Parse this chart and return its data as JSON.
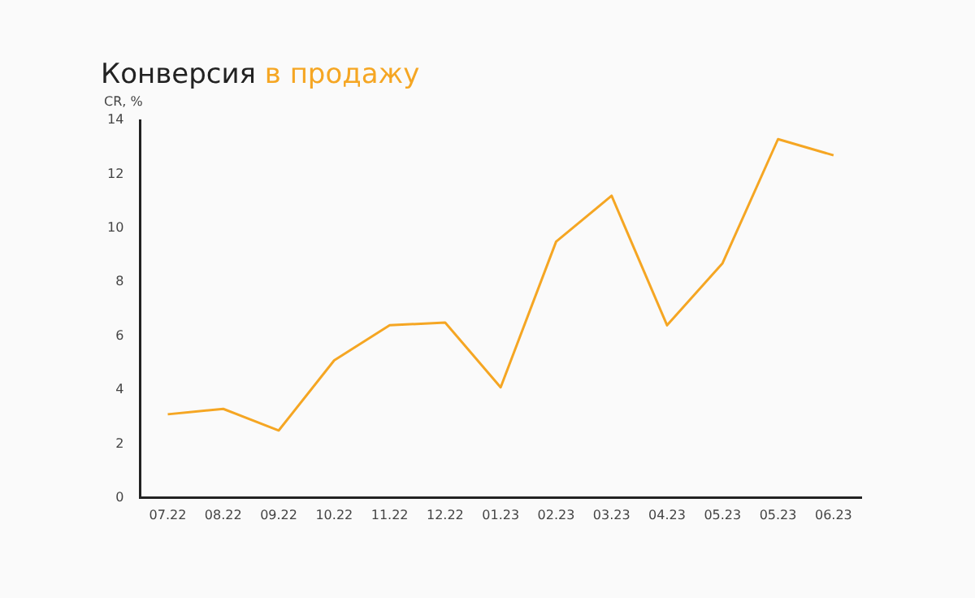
{
  "chart_data": {
    "type": "line",
    "title": "Конверсия",
    "subtitle": "в продажу",
    "ylabel": "CR, %",
    "categories": [
      "07.22",
      "08.22",
      "09.22",
      "10.22",
      "11.22",
      "12.22",
      "01.23",
      "02.23",
      "03.23",
      "04.23",
      "05.23",
      "05.23",
      "06.23"
    ],
    "series": [
      {
        "color": "#f5a623",
        "values": [
          3.1,
          3.3,
          2.5,
          5.1,
          6.4,
          6.5,
          4.1,
          9.5,
          11.2,
          6.4,
          8.7,
          13.3,
          12.7
        ]
      }
    ],
    "ylim": [
      0,
      14
    ],
    "yticks": [
      0,
      2,
      4,
      6,
      8,
      10,
      12,
      14
    ],
    "grid": false,
    "legend": false,
    "marker": "none",
    "line_style": "solid"
  }
}
